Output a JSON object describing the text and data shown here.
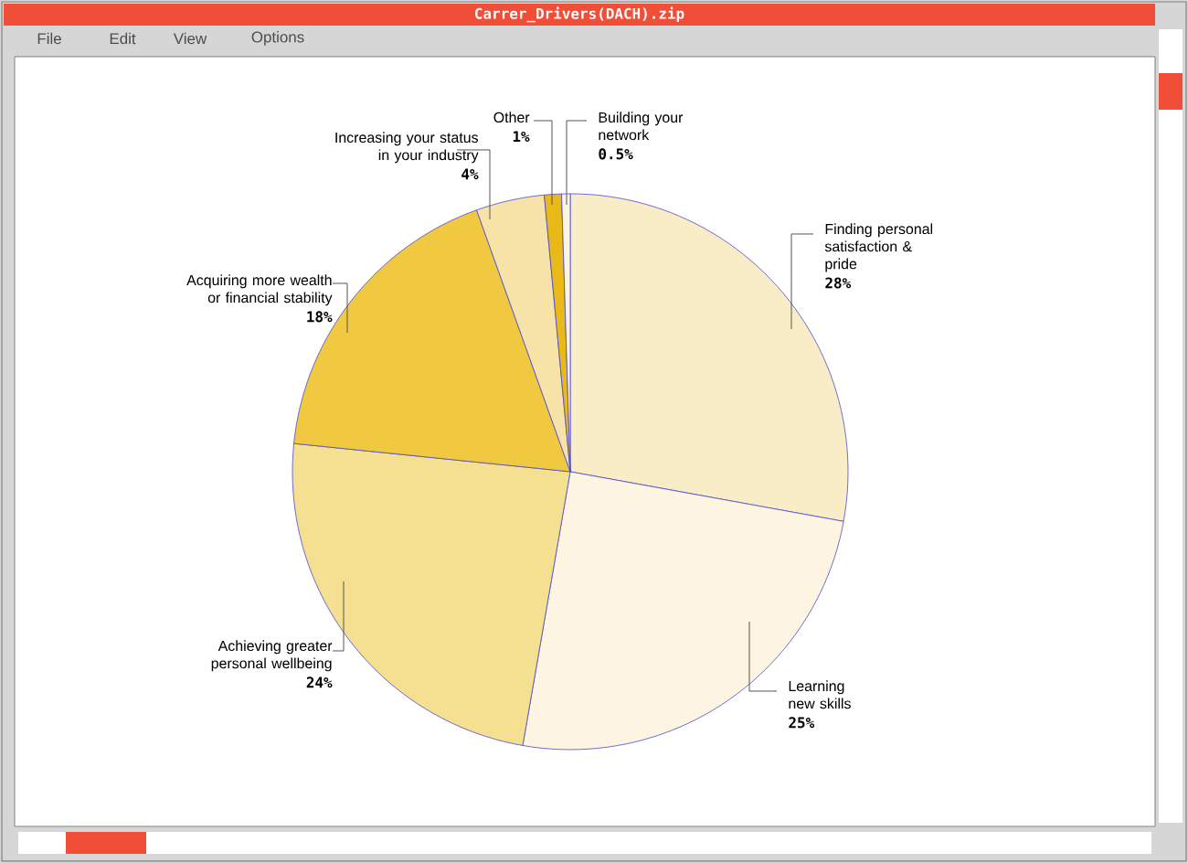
{
  "chart_data": {
    "type": "pie",
    "title": "Carrer_Drivers(DACH).zip",
    "annotations": [
      "File",
      "Edit",
      "View",
      "Options"
    ],
    "categories": [
      "Finding personal satisfaction & pride",
      "Learning new skills",
      "Achieving greater personal wellbeing",
      "Acquiring more wealth or financial stability",
      "Increasing your status in your industry",
      "Other",
      "Building your network"
    ],
    "values": [
      28,
      25,
      24,
      18,
      4,
      1,
      0.5
    ],
    "value_labels": [
      "28%",
      "25%",
      "24%",
      "18%",
      "4%",
      "1%",
      "0.5%"
    ],
    "colors": [
      "#f8edc6",
      "#fdf5e2",
      "#f5df90",
      "#f0c940",
      "#f7e3a8",
      "#e8b917",
      "#fdf5e2"
    ]
  }
}
